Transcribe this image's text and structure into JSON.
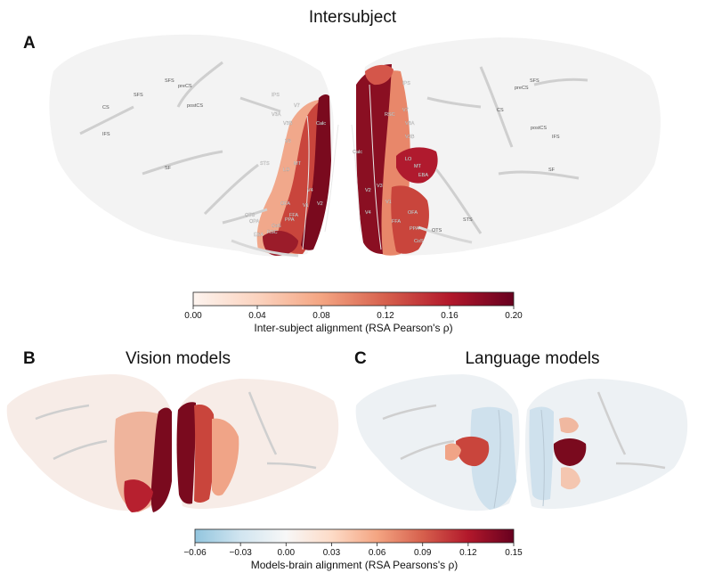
{
  "panels": {
    "a": {
      "letter": "A",
      "title": "Intersubject"
    },
    "b": {
      "letter": "B",
      "title": "Vision models"
    },
    "c": {
      "letter": "C",
      "title": "Language models"
    }
  },
  "colorbar_top": {
    "label": "Inter-subject alignment (RSA Pearson's ρ)",
    "ticks": [
      "0.00",
      "0.04",
      "0.08",
      "0.12",
      "0.16",
      "0.20"
    ],
    "range": [
      0.0,
      0.2
    ],
    "colors": [
      "#fdf4ef",
      "#fbd3bf",
      "#f4a582",
      "#d6604d",
      "#b2182b",
      "#67001f"
    ]
  },
  "colorbar_bottom": {
    "label": "Models-brain alignment (RSA Pearsons's ρ)",
    "ticks": [
      "−0.06",
      "−0.03",
      "0.00",
      "0.03",
      "0.06",
      "0.09",
      "0.12",
      "0.15"
    ],
    "range": [
      -0.06,
      0.15
    ],
    "colors": [
      "#92c5de",
      "#d1e5f0",
      "#f7f7f7",
      "#fddbc7",
      "#f4a582",
      "#d6604d",
      "#b2182b",
      "#67001f"
    ]
  },
  "roi_labels": {
    "left": [
      "SFS",
      "preCS",
      "CS",
      "postCS",
      "SFS",
      "IFS",
      "SF",
      "STS",
      "LO",
      "MT",
      "IPS",
      "V7",
      "V3",
      "V3A",
      "V3B",
      "V2",
      "V1",
      "V4",
      "OFA",
      "FFA",
      "PPA",
      "CoS",
      "OTS",
      "EBA",
      "OPA",
      "RSC",
      "Calc"
    ],
    "right": [
      "SFS",
      "preCS",
      "CS",
      "postCS",
      "IPS",
      "V7",
      "V3A",
      "V3B",
      "V3",
      "V2",
      "V1",
      "V4",
      "LO",
      "MT",
      "EBA",
      "FFA",
      "OFA",
      "PPA",
      "CoS",
      "OTS",
      "STS",
      "IFS",
      "SF",
      "RSC",
      "Calc"
    ]
  },
  "colors": {
    "cortex_bg": "#f4f4f4",
    "sulcus": "#c8c8c8",
    "dark_red": "#7a0a1e",
    "mid_red": "#c43a3a",
    "light_red": "#f0a487",
    "pale_red": "#fbd8c6",
    "pale_blue": "#d6e6f1"
  }
}
